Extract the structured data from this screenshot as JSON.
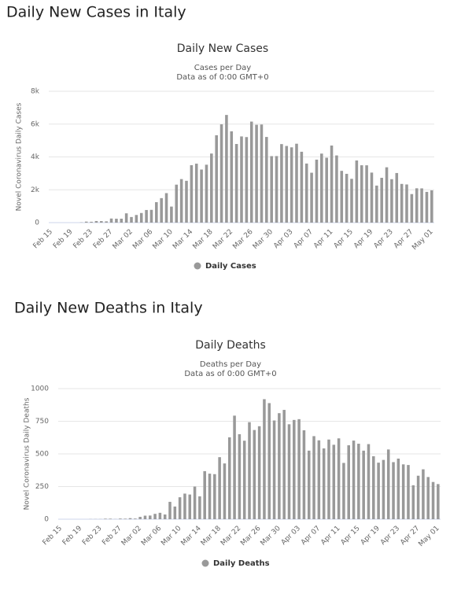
{
  "headings": [
    "Daily New Cases in Italy",
    "Daily New Deaths in Italy"
  ],
  "chart_data": [
    {
      "type": "bar",
      "title": "Daily New Cases",
      "subtitle": [
        "Cases per Day",
        "Data as of 0:00 GMT+0"
      ],
      "y_label": "Novel Coronavirus Daily Cases",
      "categories": [
        "Feb 15",
        null,
        null,
        null,
        "Feb 19",
        null,
        null,
        null,
        "Feb 23",
        null,
        null,
        null,
        "Feb 27",
        null,
        null,
        null,
        "Mar 02",
        null,
        null,
        null,
        "Mar 06",
        null,
        null,
        null,
        "Mar 10",
        null,
        null,
        null,
        "Mar 14",
        null,
        null,
        null,
        "Mar 18",
        null,
        null,
        null,
        "Mar 22",
        null,
        null,
        null,
        "Mar 26",
        null,
        null,
        null,
        "Mar 30",
        null,
        null,
        null,
        "Apr 03",
        null,
        null,
        null,
        "Apr 07",
        null,
        null,
        null,
        "Apr 11",
        null,
        null,
        null,
        "Apr 15",
        null,
        null,
        null,
        "Apr 19",
        null,
        null,
        null,
        "Apr 23",
        null,
        null,
        null,
        "Apr 27",
        null,
        null,
        null,
        "May 01"
      ],
      "series": [
        {
          "name": "Daily Cases",
          "color": "#999999",
          "values": [
            0,
            0,
            0,
            0,
            0,
            0,
            14,
            62,
            53,
            97,
            93,
            78,
            250,
            238,
            240,
            566,
            342,
            466,
            587,
            769,
            778,
            1247,
            1492,
            1797,
            977,
            2313,
            2651,
            2547,
            3497,
            3590,
            3233,
            3526,
            4207,
            5322,
            5986,
            6557,
            5560,
            4789,
            5249,
            5210,
            6153,
            5959,
            5974,
            5217,
            4050,
            4053,
            4782,
            4668,
            4585,
            4805,
            4316,
            3599,
            3039,
            3836,
            4204,
            3951,
            4694,
            4092,
            3153,
            2972,
            2667,
            3786,
            3493,
            3491,
            3047,
            2256,
            2729,
            3370,
            2646,
            3021,
            2357,
            2324,
            1739,
            2091,
            2086,
            1872,
            1965
          ]
        }
      ],
      "ylim": [
        0,
        8000
      ],
      "yticks": [
        0,
        {
          "value": 2000,
          "label": "2k"
        },
        {
          "value": 4000,
          "label": "4k"
        },
        {
          "value": 6000,
          "label": "6k"
        },
        {
          "value": 8000,
          "label": "8k"
        }
      ],
      "grid": true
    },
    {
      "type": "bar",
      "title": "Daily Deaths",
      "subtitle": [
        "Deaths per Day",
        "Data as of 0:00 GMT+0"
      ],
      "y_label": "Novel Coronavirus Daily Deaths",
      "categories": [
        "Feb 15",
        null,
        null,
        null,
        "Feb 19",
        null,
        null,
        null,
        "Feb 23",
        null,
        null,
        null,
        "Feb 27",
        null,
        null,
        null,
        "Mar 02",
        null,
        null,
        null,
        "Mar 06",
        null,
        null,
        null,
        "Mar 10",
        null,
        null,
        null,
        "Mar 14",
        null,
        null,
        null,
        "Mar 18",
        null,
        null,
        null,
        "Mar 22",
        null,
        null,
        null,
        "Mar 26",
        null,
        null,
        null,
        "Mar 30",
        null,
        null,
        null,
        "Apr 03",
        null,
        null,
        null,
        "Apr 07",
        null,
        null,
        null,
        "Apr 11",
        null,
        null,
        null,
        "Apr 15",
        null,
        null,
        null,
        "Apr 19",
        null,
        null,
        null,
        "Apr 23",
        null,
        null,
        null,
        "Apr 27",
        null,
        null,
        null,
        "May 01"
      ],
      "series": [
        {
          "name": "Daily Deaths",
          "color": "#999999",
          "values": [
            0,
            0,
            0,
            0,
            0,
            0,
            1,
            1,
            1,
            4,
            4,
            1,
            5,
            4,
            8,
            5,
            18,
            27,
            28,
            41,
            49,
            36,
            133,
            97,
            168,
            196,
            189,
            250,
            175,
            368,
            349,
            345,
            475,
            427,
            627,
            793,
            651,
            601,
            743,
            683,
            712,
            919,
            889,
            756,
            812,
            837,
            727,
            760,
            766,
            681,
            525,
            636,
            604,
            542,
            610,
            570,
            619,
            431,
            566,
            602,
            578,
            525,
            575,
            482,
            433,
            454,
            534,
            437,
            464,
            420,
            415,
            260,
            333,
            382,
            323,
            285,
            269
          ]
        }
      ],
      "ylim": [
        0,
        1000
      ],
      "yticks": [
        0,
        250,
        500,
        750,
        1000
      ],
      "grid": true
    }
  ]
}
